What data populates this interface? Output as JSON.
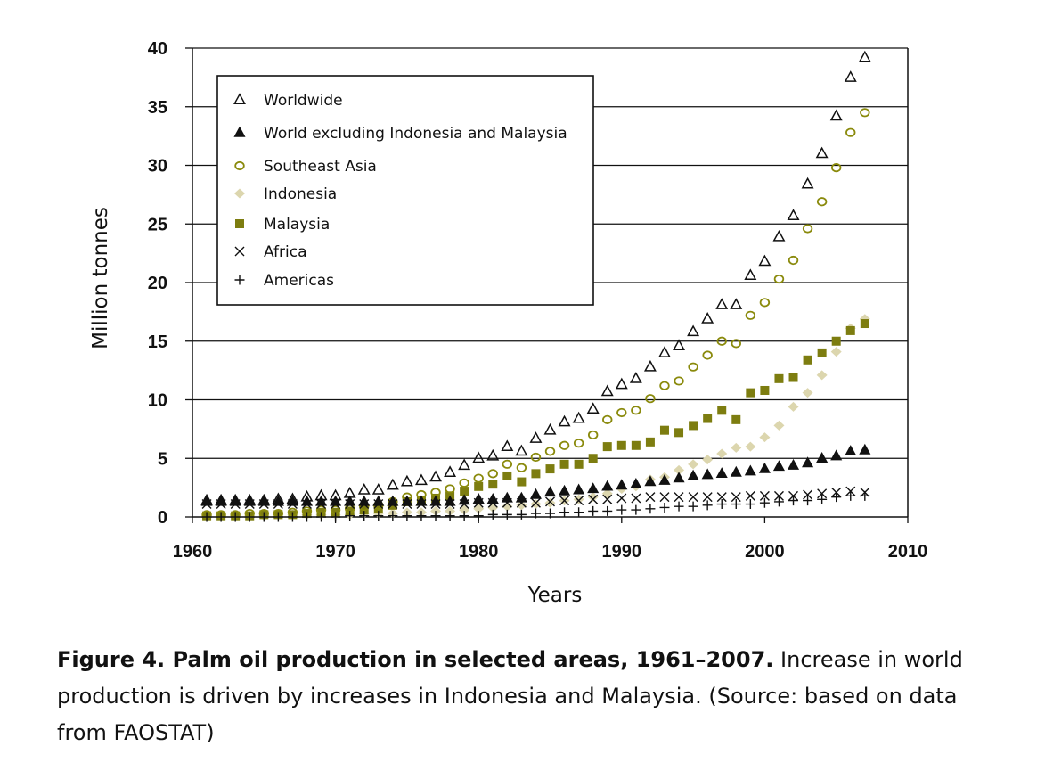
{
  "colors": {
    "black": "#111111",
    "olive": "#8a8a0c",
    "olive_dark": "#7d7d10",
    "indonesia": "#dcd6ae",
    "grid": "#111111"
  },
  "chart_data": {
    "type": "scatter",
    "xlabel": "Years",
    "ylabel": "Million tonnes",
    "xlim": [
      1960,
      2010
    ],
    "ylim": [
      0,
      40
    ],
    "xticks": [
      "1960",
      "1970",
      "1980",
      "1990",
      "2000",
      "2010"
    ],
    "yticks": [
      "0",
      "5",
      "10",
      "15",
      "20",
      "25",
      "30",
      "35",
      "40"
    ],
    "grid": "horizontal",
    "legend_position": "top-left",
    "x": [
      1961,
      1962,
      1963,
      1964,
      1965,
      1966,
      1967,
      1968,
      1969,
      1970,
      1971,
      1972,
      1973,
      1974,
      1975,
      1976,
      1977,
      1978,
      1979,
      1980,
      1981,
      1982,
      1983,
      1984,
      1985,
      1986,
      1987,
      1988,
      1989,
      1990,
      1991,
      1992,
      1993,
      1994,
      1995,
      1996,
      1997,
      1998,
      1999,
      2000,
      2001,
      2002,
      2003,
      2004,
      2005,
      2006,
      2007
    ],
    "series": [
      {
        "name": "Worldwide",
        "marker": "triangle-open",
        "values": [
          1.4,
          1.4,
          1.4,
          1.4,
          1.4,
          1.5,
          1.5,
          1.7,
          1.8,
          1.8,
          2.0,
          2.3,
          2.3,
          2.7,
          3.0,
          3.1,
          3.4,
          3.8,
          4.4,
          5.0,
          5.2,
          6.0,
          5.6,
          6.7,
          7.4,
          8.1,
          8.4,
          9.2,
          10.7,
          11.3,
          11.8,
          12.8,
          14.0,
          14.6,
          15.8,
          16.9,
          18.1,
          18.1,
          20.6,
          21.8,
          23.9,
          25.7,
          28.4,
          31.0,
          34.2,
          37.5,
          39.2
        ]
      },
      {
        "name": "World excluding Indonesia and Malaysia",
        "marker": "triangle-filled",
        "values": [
          1.3,
          1.3,
          1.3,
          1.3,
          1.3,
          1.3,
          1.3,
          1.3,
          1.3,
          1.3,
          1.3,
          1.3,
          1.3,
          1.3,
          1.3,
          1.3,
          1.3,
          1.3,
          1.4,
          1.5,
          1.5,
          1.6,
          1.6,
          1.9,
          2.1,
          2.2,
          2.3,
          2.4,
          2.6,
          2.7,
          2.8,
          3.0,
          3.1,
          3.3,
          3.5,
          3.6,
          3.7,
          3.8,
          3.9,
          4.1,
          4.3,
          4.4,
          4.6,
          5.0,
          5.2,
          5.6,
          5.7
        ]
      },
      {
        "name": "Southeast Asia",
        "marker": "circle-open",
        "values": [
          0.2,
          0.2,
          0.2,
          0.3,
          0.3,
          0.3,
          0.4,
          0.5,
          0.6,
          0.6,
          0.7,
          0.9,
          1.0,
          1.3,
          1.7,
          1.9,
          2.1,
          2.4,
          2.9,
          3.3,
          3.7,
          4.5,
          4.2,
          5.1,
          5.6,
          6.1,
          6.3,
          7.0,
          8.3,
          8.9,
          9.1,
          10.1,
          11.2,
          11.6,
          12.8,
          13.8,
          15.0,
          14.8,
          17.2,
          18.3,
          20.3,
          21.9,
          24.6,
          26.9,
          29.8,
          32.8,
          34.5
        ]
      },
      {
        "name": "Indonesia",
        "marker": "diamond-filled",
        "values": [
          0.1,
          0.1,
          0.1,
          0.1,
          0.1,
          0.2,
          0.2,
          0.2,
          0.2,
          0.2,
          0.2,
          0.3,
          0.3,
          0.3,
          0.4,
          0.4,
          0.5,
          0.5,
          0.6,
          0.7,
          0.8,
          0.9,
          1.0,
          1.1,
          1.2,
          1.4,
          1.5,
          1.7,
          2.0,
          2.4,
          2.6,
          3.2,
          3.4,
          4.0,
          4.5,
          4.9,
          5.4,
          5.9,
          6.0,
          6.8,
          7.8,
          9.4,
          10.6,
          12.1,
          14.1,
          16.1,
          16.9
        ]
      },
      {
        "name": "Malaysia",
        "marker": "square-filled",
        "values": [
          0.1,
          0.1,
          0.1,
          0.1,
          0.2,
          0.2,
          0.2,
          0.3,
          0.4,
          0.4,
          0.5,
          0.6,
          0.7,
          1.0,
          1.3,
          1.4,
          1.6,
          1.8,
          2.2,
          2.6,
          2.8,
          3.5,
          3.0,
          3.7,
          4.1,
          4.5,
          4.5,
          5.0,
          6.0,
          6.1,
          6.1,
          6.4,
          7.4,
          7.2,
          7.8,
          8.4,
          9.1,
          8.3,
          10.6,
          10.8,
          11.8,
          11.9,
          13.4,
          14.0,
          15.0,
          15.9,
          16.5
        ]
      },
      {
        "name": "Africa",
        "marker": "x",
        "values": [
          1.1,
          1.1,
          1.1,
          1.1,
          1.1,
          1.1,
          1.1,
          1.1,
          1.1,
          1.1,
          1.1,
          1.1,
          1.1,
          1.1,
          1.1,
          1.1,
          1.1,
          1.1,
          1.1,
          1.2,
          1.2,
          1.2,
          1.2,
          1.2,
          1.3,
          1.4,
          1.4,
          1.5,
          1.5,
          1.6,
          1.6,
          1.7,
          1.7,
          1.7,
          1.7,
          1.7,
          1.7,
          1.7,
          1.8,
          1.8,
          1.8,
          1.8,
          1.9,
          2.0,
          2.1,
          2.2,
          2.1
        ]
      },
      {
        "name": "Americas",
        "marker": "plus",
        "values": [
          0.0,
          0.0,
          0.0,
          0.0,
          0.0,
          0.0,
          0.0,
          0.0,
          0.0,
          0.0,
          0.1,
          0.1,
          0.1,
          0.1,
          0.1,
          0.1,
          0.1,
          0.1,
          0.1,
          0.1,
          0.2,
          0.2,
          0.2,
          0.3,
          0.3,
          0.4,
          0.4,
          0.5,
          0.5,
          0.6,
          0.6,
          0.7,
          0.8,
          0.9,
          0.9,
          1.0,
          1.1,
          1.1,
          1.1,
          1.2,
          1.3,
          1.4,
          1.4,
          1.5,
          1.7,
          1.8,
          1.8
        ]
      }
    ]
  },
  "caption": {
    "bold": "Figure 4. Palm oil production in selected areas, 1961–2007.",
    "line1": " Increase in world",
    "line2": "production is driven by increases in Indonesia and Malaysia. (Source: based on data",
    "line3": "from FAOSTAT)"
  }
}
